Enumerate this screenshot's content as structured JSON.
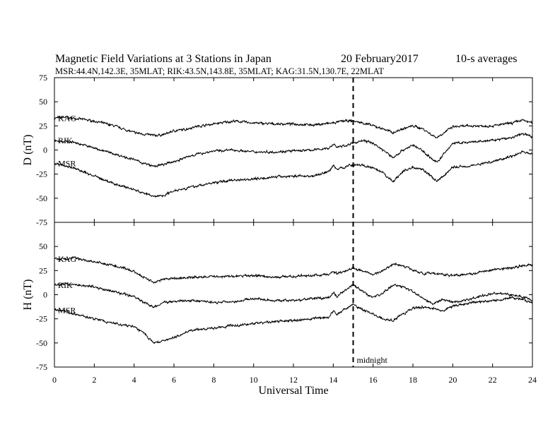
{
  "title": {
    "main": "Magnetic Field Variations at 3 Stations in Japan",
    "date": "20 February2017",
    "averaging": "10-s averages",
    "stations": "MSR:44.4N,142.3E, 35MLAT;   RIK:43.5N,143.8E, 35MLAT;   KAG:31.5N,130.7E, 22MLAT"
  },
  "chart_data": {
    "type": "line",
    "xlabel": "Universal Time",
    "xlim": [
      0,
      24
    ],
    "x_ticks": [
      0,
      2,
      4,
      6,
      8,
      10,
      12,
      14,
      16,
      18,
      20,
      22,
      24
    ],
    "marker": {
      "x": 15,
      "label": "midnight",
      "style": "dashed"
    },
    "panels": [
      {
        "ylabel": "D (nT)",
        "ylim": [
          -75,
          75
        ],
        "y_ticks": [
          75,
          50,
          25,
          0,
          -25,
          -50,
          -75
        ],
        "series": [
          {
            "name": "KAG",
            "x": [
              0,
              0.5,
              1,
              2,
              3,
              4,
              5,
              5.5,
              6,
              6.5,
              7,
              8,
              9,
              10,
              11,
              12,
              13,
              13.5,
              14,
              14.5,
              15,
              15.5,
              16,
              16.5,
              17,
              17.5,
              18,
              18.5,
              19,
              19.2,
              20,
              21,
              22,
              23,
              23.5,
              24
            ],
            "y": [
              33,
              34,
              33,
              30,
              25,
              18,
              15,
              16,
              20,
              21,
              24,
              27,
              30,
              28,
              27,
              27,
              26,
              27,
              28,
              30,
              30,
              28,
              25,
              22,
              18,
              22,
              25,
              22,
              15,
              13,
              24,
              25,
              25,
              28,
              31,
              28
            ]
          },
          {
            "name": "RIK",
            "x": [
              0,
              0.5,
              1,
              2,
              3,
              4,
              4.5,
              5,
              5.5,
              6,
              7,
              8,
              9,
              10,
              11,
              12,
              13,
              13.8,
              14,
              14.2,
              14.5,
              15,
              15.5,
              16,
              16.5,
              17,
              17.5,
              18,
              18.5,
              19,
              19.2,
              20,
              21,
              22,
              23,
              23.5,
              24
            ],
            "y": [
              10,
              9,
              8,
              2,
              -4,
              -10,
              -14,
              -17,
              -15,
              -12,
              -5,
              -1,
              0,
              -2,
              -2,
              -1,
              0,
              2,
              6,
              3,
              4,
              7,
              10,
              7,
              0,
              -8,
              0,
              5,
              -1,
              -10,
              -13,
              7,
              8,
              10,
              13,
              17,
              14
            ]
          },
          {
            "name": "MSR",
            "x": [
              0,
              0.5,
              1,
              2,
              3,
              4,
              4.5,
              5,
              5.5,
              6,
              6.5,
              7,
              8,
              9,
              10,
              11,
              12,
              13,
              13.8,
              14,
              14.2,
              14.5,
              15,
              15.5,
              16,
              16.5,
              17,
              17.5,
              18,
              18.5,
              19,
              19.2,
              20,
              21,
              22,
              23,
              23.5,
              24
            ],
            "y": [
              -14,
              -16,
              -19,
              -27,
              -35,
              -41,
              -45,
              -48,
              -47,
              -42,
              -40,
              -38,
              -34,
              -31,
              -30,
              -28,
              -27,
              -27,
              -22,
              -16,
              -20,
              -18,
              -15,
              -16,
              -19,
              -24,
              -33,
              -22,
              -18,
              -20,
              -29,
              -33,
              -18,
              -16,
              -12,
              -6,
              -2,
              -4
            ]
          }
        ]
      },
      {
        "ylabel": "H (nT)",
        "ylim": [
          -75,
          75
        ],
        "y_ticks": [
          75,
          50,
          25,
          0,
          -25,
          -50,
          -75
        ],
        "series": [
          {
            "name": "KAG",
            "x": [
              0,
              0.5,
              1,
              2,
              3,
              4,
              4.5,
              5,
              5.5,
              6,
              7,
              8,
              9,
              10,
              11,
              12,
              13,
              13.8,
              14,
              14.2,
              14.5,
              15,
              15.5,
              16,
              16.5,
              17,
              17.5,
              18,
              18.5,
              19,
              19.5,
              20,
              21,
              22,
              23,
              23.5,
              24
            ],
            "y": [
              37,
              37,
              38,
              34,
              30,
              24,
              18,
              13,
              16,
              17,
              18,
              19,
              19,
              20,
              18,
              19,
              20,
              21,
              24,
              22,
              24,
              28,
              24,
              21,
              25,
              32,
              30,
              26,
              22,
              22,
              21,
              20,
              22,
              26,
              28,
              30,
              31
            ]
          },
          {
            "name": "RIK",
            "x": [
              0,
              0.5,
              1,
              2,
              3,
              4,
              4.5,
              5,
              5.5,
              6,
              7,
              8,
              9,
              10,
              11,
              12,
              13,
              13.8,
              14,
              14.2,
              14.5,
              15,
              15.5,
              16,
              16.5,
              17,
              17.5,
              18,
              18.5,
              19,
              19.5,
              20,
              21,
              22,
              23,
              23.5,
              24
            ],
            "y": [
              10,
              11,
              11,
              8,
              3,
              -2,
              -8,
              -13,
              -8,
              -7,
              -6,
              -8,
              -7,
              -4,
              -6,
              -6,
              -4,
              -3,
              2,
              -2,
              3,
              10,
              3,
              -3,
              2,
              10,
              8,
              3,
              -3,
              -10,
              -5,
              -8,
              -4,
              2,
              0,
              -2,
              -6
            ]
          },
          {
            "name": "MSR",
            "x": [
              0,
              0.5,
              1,
              2,
              3,
              4,
              4.5,
              5,
              5.5,
              6,
              6.5,
              7,
              8,
              9,
              10,
              11,
              12,
              13,
              13.8,
              14,
              14.2,
              14.5,
              15,
              15.5,
              16,
              16.5,
              17,
              17.5,
              18,
              18.5,
              19,
              19.5,
              20,
              21,
              22,
              23,
              23.5,
              24
            ],
            "y": [
              -16,
              -17,
              -20,
              -25,
              -30,
              -33,
              -40,
              -50,
              -48,
              -44,
              -40,
              -36,
              -35,
              -32,
              -30,
              -28,
              -27,
              -25,
              -23,
              -17,
              -20,
              -16,
              -10,
              -16,
              -20,
              -25,
              -27,
              -20,
              -14,
              -13,
              -14,
              -17,
              -12,
              -8,
              -6,
              -3,
              -5,
              -8
            ]
          }
        ]
      }
    ]
  }
}
